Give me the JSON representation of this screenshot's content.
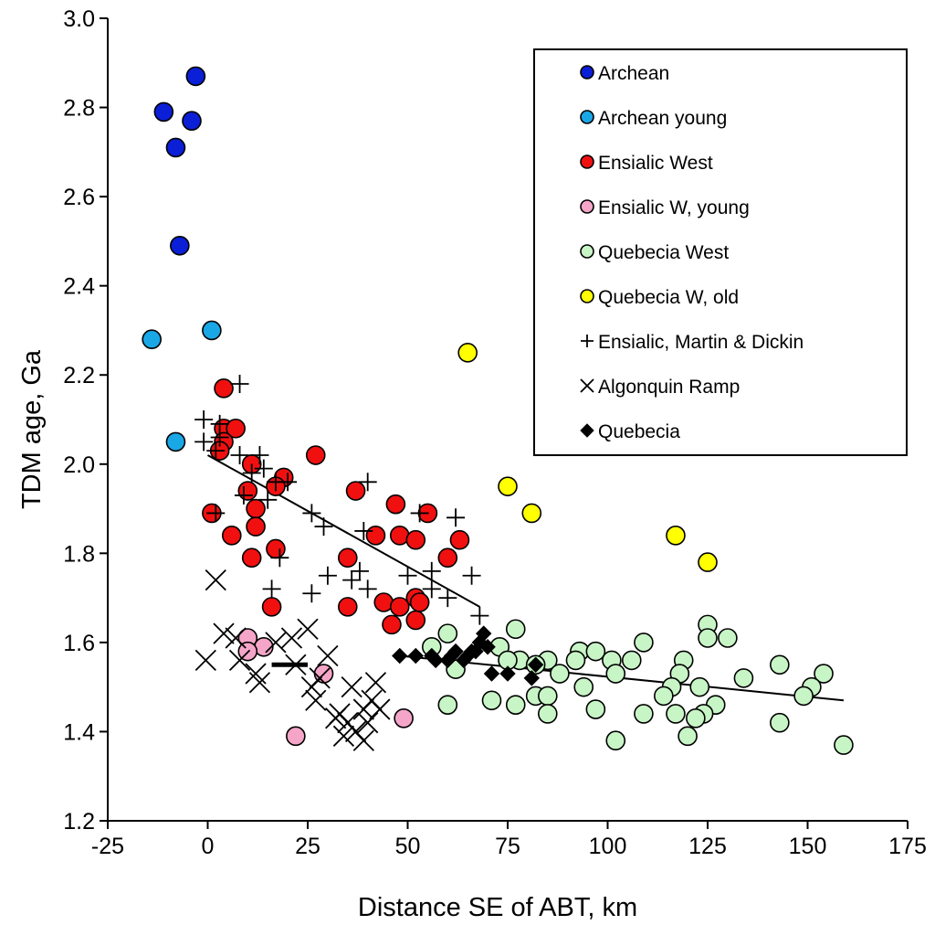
{
  "chart_data": {
    "type": "scatter",
    "title": "",
    "xlabel": "Distance SE of ABT, km",
    "ylabel": "TDM age, Ga",
    "xlim": [
      -25,
      175
    ],
    "ylim": [
      1.2,
      3.0
    ],
    "x_ticks": [
      "-25",
      "0",
      "25",
      "50",
      "75",
      "100",
      "125",
      "150",
      "175"
    ],
    "y_ticks": [
      "1.2",
      "1.4",
      "1.6",
      "1.8",
      "2.0",
      "2.2",
      "2.4",
      "2.6",
      "2.8",
      "3.0"
    ],
    "legend_position": "top-right",
    "series": [
      {
        "name": "Archean",
        "marker": "circle",
        "color": "#0a1fd6",
        "points": [
          [
            -3,
            2.87
          ],
          [
            -11,
            2.79
          ],
          [
            -4,
            2.77
          ],
          [
            -8,
            2.71
          ],
          [
            -7,
            2.49
          ]
        ]
      },
      {
        "name": "Archean young",
        "marker": "circle",
        "color": "#1aa7e6",
        "points": [
          [
            -14,
            2.28
          ],
          [
            1,
            2.3
          ],
          [
            -8,
            2.05
          ]
        ]
      },
      {
        "name": "Ensialic West",
        "marker": "circle",
        "color": "#f01010",
        "points": [
          [
            4,
            2.17
          ],
          [
            4,
            2.08
          ],
          [
            7,
            2.08
          ],
          [
            4,
            2.05
          ],
          [
            3,
            2.03
          ],
          [
            27,
            2.02
          ],
          [
            11,
            2.0
          ],
          [
            19,
            1.97
          ],
          [
            17,
            1.95
          ],
          [
            10,
            1.94
          ],
          [
            37,
            1.94
          ],
          [
            47,
            1.91
          ],
          [
            12,
            1.9
          ],
          [
            55,
            1.89
          ],
          [
            1,
            1.89
          ],
          [
            12,
            1.86
          ],
          [
            6,
            1.84
          ],
          [
            42,
            1.84
          ],
          [
            48,
            1.84
          ],
          [
            52,
            1.83
          ],
          [
            63,
            1.83
          ],
          [
            17,
            1.81
          ],
          [
            35,
            1.79
          ],
          [
            11,
            1.79
          ],
          [
            60,
            1.79
          ],
          [
            52,
            1.7
          ],
          [
            44,
            1.69
          ],
          [
            53,
            1.69
          ],
          [
            48,
            1.68
          ],
          [
            35,
            1.68
          ],
          [
            16,
            1.68
          ],
          [
            52,
            1.65
          ],
          [
            46,
            1.64
          ]
        ]
      },
      {
        "name": "Ensialic W, young",
        "marker": "circle",
        "color": "#f5a6c8",
        "points": [
          [
            10,
            1.61
          ],
          [
            14,
            1.59
          ],
          [
            10,
            1.58
          ],
          [
            29,
            1.53
          ],
          [
            49,
            1.43
          ],
          [
            22,
            1.39
          ]
        ]
      },
      {
        "name": "Quebecia West",
        "marker": "circle",
        "color": "#c8f5c6",
        "points": [
          [
            60,
            1.62
          ],
          [
            77,
            1.63
          ],
          [
            125,
            1.64
          ],
          [
            125,
            1.61
          ],
          [
            130,
            1.61
          ],
          [
            109,
            1.6
          ],
          [
            56,
            1.59
          ],
          [
            73,
            1.59
          ],
          [
            93,
            1.58
          ],
          [
            97,
            1.58
          ],
          [
            78,
            1.56
          ],
          [
            85,
            1.56
          ],
          [
            92,
            1.56
          ],
          [
            101,
            1.56
          ],
          [
            106,
            1.56
          ],
          [
            119,
            1.56
          ],
          [
            82,
            1.55
          ],
          [
            88,
            1.53
          ],
          [
            102,
            1.53
          ],
          [
            118,
            1.53
          ],
          [
            75,
            1.56
          ],
          [
            62,
            1.54
          ],
          [
            143,
            1.55
          ],
          [
            134,
            1.52
          ],
          [
            154,
            1.53
          ],
          [
            151,
            1.5
          ],
          [
            123,
            1.5
          ],
          [
            116,
            1.5
          ],
          [
            94,
            1.5
          ],
          [
            82,
            1.48
          ],
          [
            85,
            1.48
          ],
          [
            114,
            1.48
          ],
          [
            149,
            1.48
          ],
          [
            71,
            1.47
          ],
          [
            60,
            1.46
          ],
          [
            77,
            1.46
          ],
          [
            127,
            1.46
          ],
          [
            97,
            1.45
          ],
          [
            85,
            1.44
          ],
          [
            117,
            1.44
          ],
          [
            109,
            1.44
          ],
          [
            124,
            1.44
          ],
          [
            122,
            1.43
          ],
          [
            143,
            1.42
          ],
          [
            102,
            1.38
          ],
          [
            120,
            1.39
          ],
          [
            159,
            1.37
          ]
        ]
      },
      {
        "name": "Quebecia W, old",
        "marker": "circle",
        "color": "#ffff00",
        "points": [
          [
            65,
            2.25
          ],
          [
            75,
            1.95
          ],
          [
            81,
            1.89
          ],
          [
            117,
            1.84
          ],
          [
            125,
            1.78
          ]
        ]
      },
      {
        "name": "Ensialic, Martin & Dickin",
        "marker": "plus",
        "color": "#000000",
        "points": [
          [
            8,
            2.18
          ],
          [
            -1,
            2.1
          ],
          [
            3,
            2.09
          ],
          [
            -1,
            2.05
          ],
          [
            3,
            2.06
          ],
          [
            2,
            2.03
          ],
          [
            8,
            2.02
          ],
          [
            13,
            2.02
          ],
          [
            14,
            1.99
          ],
          [
            11,
            1.98
          ],
          [
            17,
            1.96
          ],
          [
            20,
            1.96
          ],
          [
            40,
            1.96
          ],
          [
            9,
            1.93
          ],
          [
            15,
            1.92
          ],
          [
            26,
            1.89
          ],
          [
            29,
            1.86
          ],
          [
            39,
            1.85
          ],
          [
            62,
            1.88
          ],
          [
            53,
            1.89
          ],
          [
            2,
            1.89
          ],
          [
            18,
            1.79
          ],
          [
            38,
            1.76
          ],
          [
            30,
            1.75
          ],
          [
            36,
            1.74
          ],
          [
            50,
            1.75
          ],
          [
            56,
            1.76
          ],
          [
            66,
            1.75
          ],
          [
            16,
            1.72
          ],
          [
            26,
            1.71
          ],
          [
            40,
            1.72
          ],
          [
            56,
            1.72
          ],
          [
            60,
            1.7
          ],
          [
            68,
            1.66
          ]
        ]
      },
      {
        "name": "Algonquin Ramp",
        "marker": "x",
        "color": "#000000",
        "points": [
          [
            2,
            1.74
          ],
          [
            -0.5,
            1.56
          ],
          [
            4,
            1.62
          ],
          [
            7,
            1.61
          ],
          [
            12,
            1.53
          ],
          [
            13,
            1.51
          ],
          [
            8,
            1.56
          ],
          [
            17,
            1.6
          ],
          [
            21,
            1.61
          ],
          [
            25,
            1.63
          ],
          [
            22,
            1.55
          ],
          [
            26,
            1.5
          ],
          [
            28,
            1.52
          ],
          [
            30,
            1.57
          ],
          [
            27,
            1.47
          ],
          [
            33,
            1.44
          ],
          [
            32,
            1.43
          ],
          [
            35,
            1.42
          ],
          [
            36,
            1.5
          ],
          [
            39,
            1.45
          ],
          [
            41,
            1.47
          ],
          [
            42,
            1.51
          ],
          [
            43,
            1.45
          ],
          [
            34,
            1.39
          ],
          [
            37,
            1.4
          ],
          [
            39,
            1.38
          ],
          [
            40,
            1.42
          ]
        ]
      },
      {
        "name": "Quebecia",
        "marker": "diamond",
        "color": "#000000",
        "points": [
          [
            48,
            1.57
          ],
          [
            52,
            1.57
          ],
          [
            56,
            1.57
          ],
          [
            57,
            1.56
          ],
          [
            60,
            1.56
          ],
          [
            61,
            1.57
          ],
          [
            62,
            1.58
          ],
          [
            64,
            1.56
          ],
          [
            65,
            1.57
          ],
          [
            66,
            1.58
          ],
          [
            67,
            1.58
          ],
          [
            68,
            1.6
          ],
          [
            69,
            1.62
          ],
          [
            70,
            1.59
          ],
          [
            71,
            1.53
          ],
          [
            75,
            1.53
          ],
          [
            81,
            1.52
          ],
          [
            82,
            1.55
          ]
        ]
      }
    ],
    "trend_lines": [
      {
        "name": "Ensialic trend",
        "from": [
          0,
          2.02
        ],
        "to": [
          68,
          1.68
        ]
      },
      {
        "name": "Algonquin Ramp trend",
        "from": [
          16,
          1.55
        ],
        "to": [
          25,
          1.55
        ]
      },
      {
        "name": "Quebecia trend",
        "from": [
          48,
          1.57
        ],
        "to": [
          159,
          1.47
        ]
      }
    ]
  }
}
